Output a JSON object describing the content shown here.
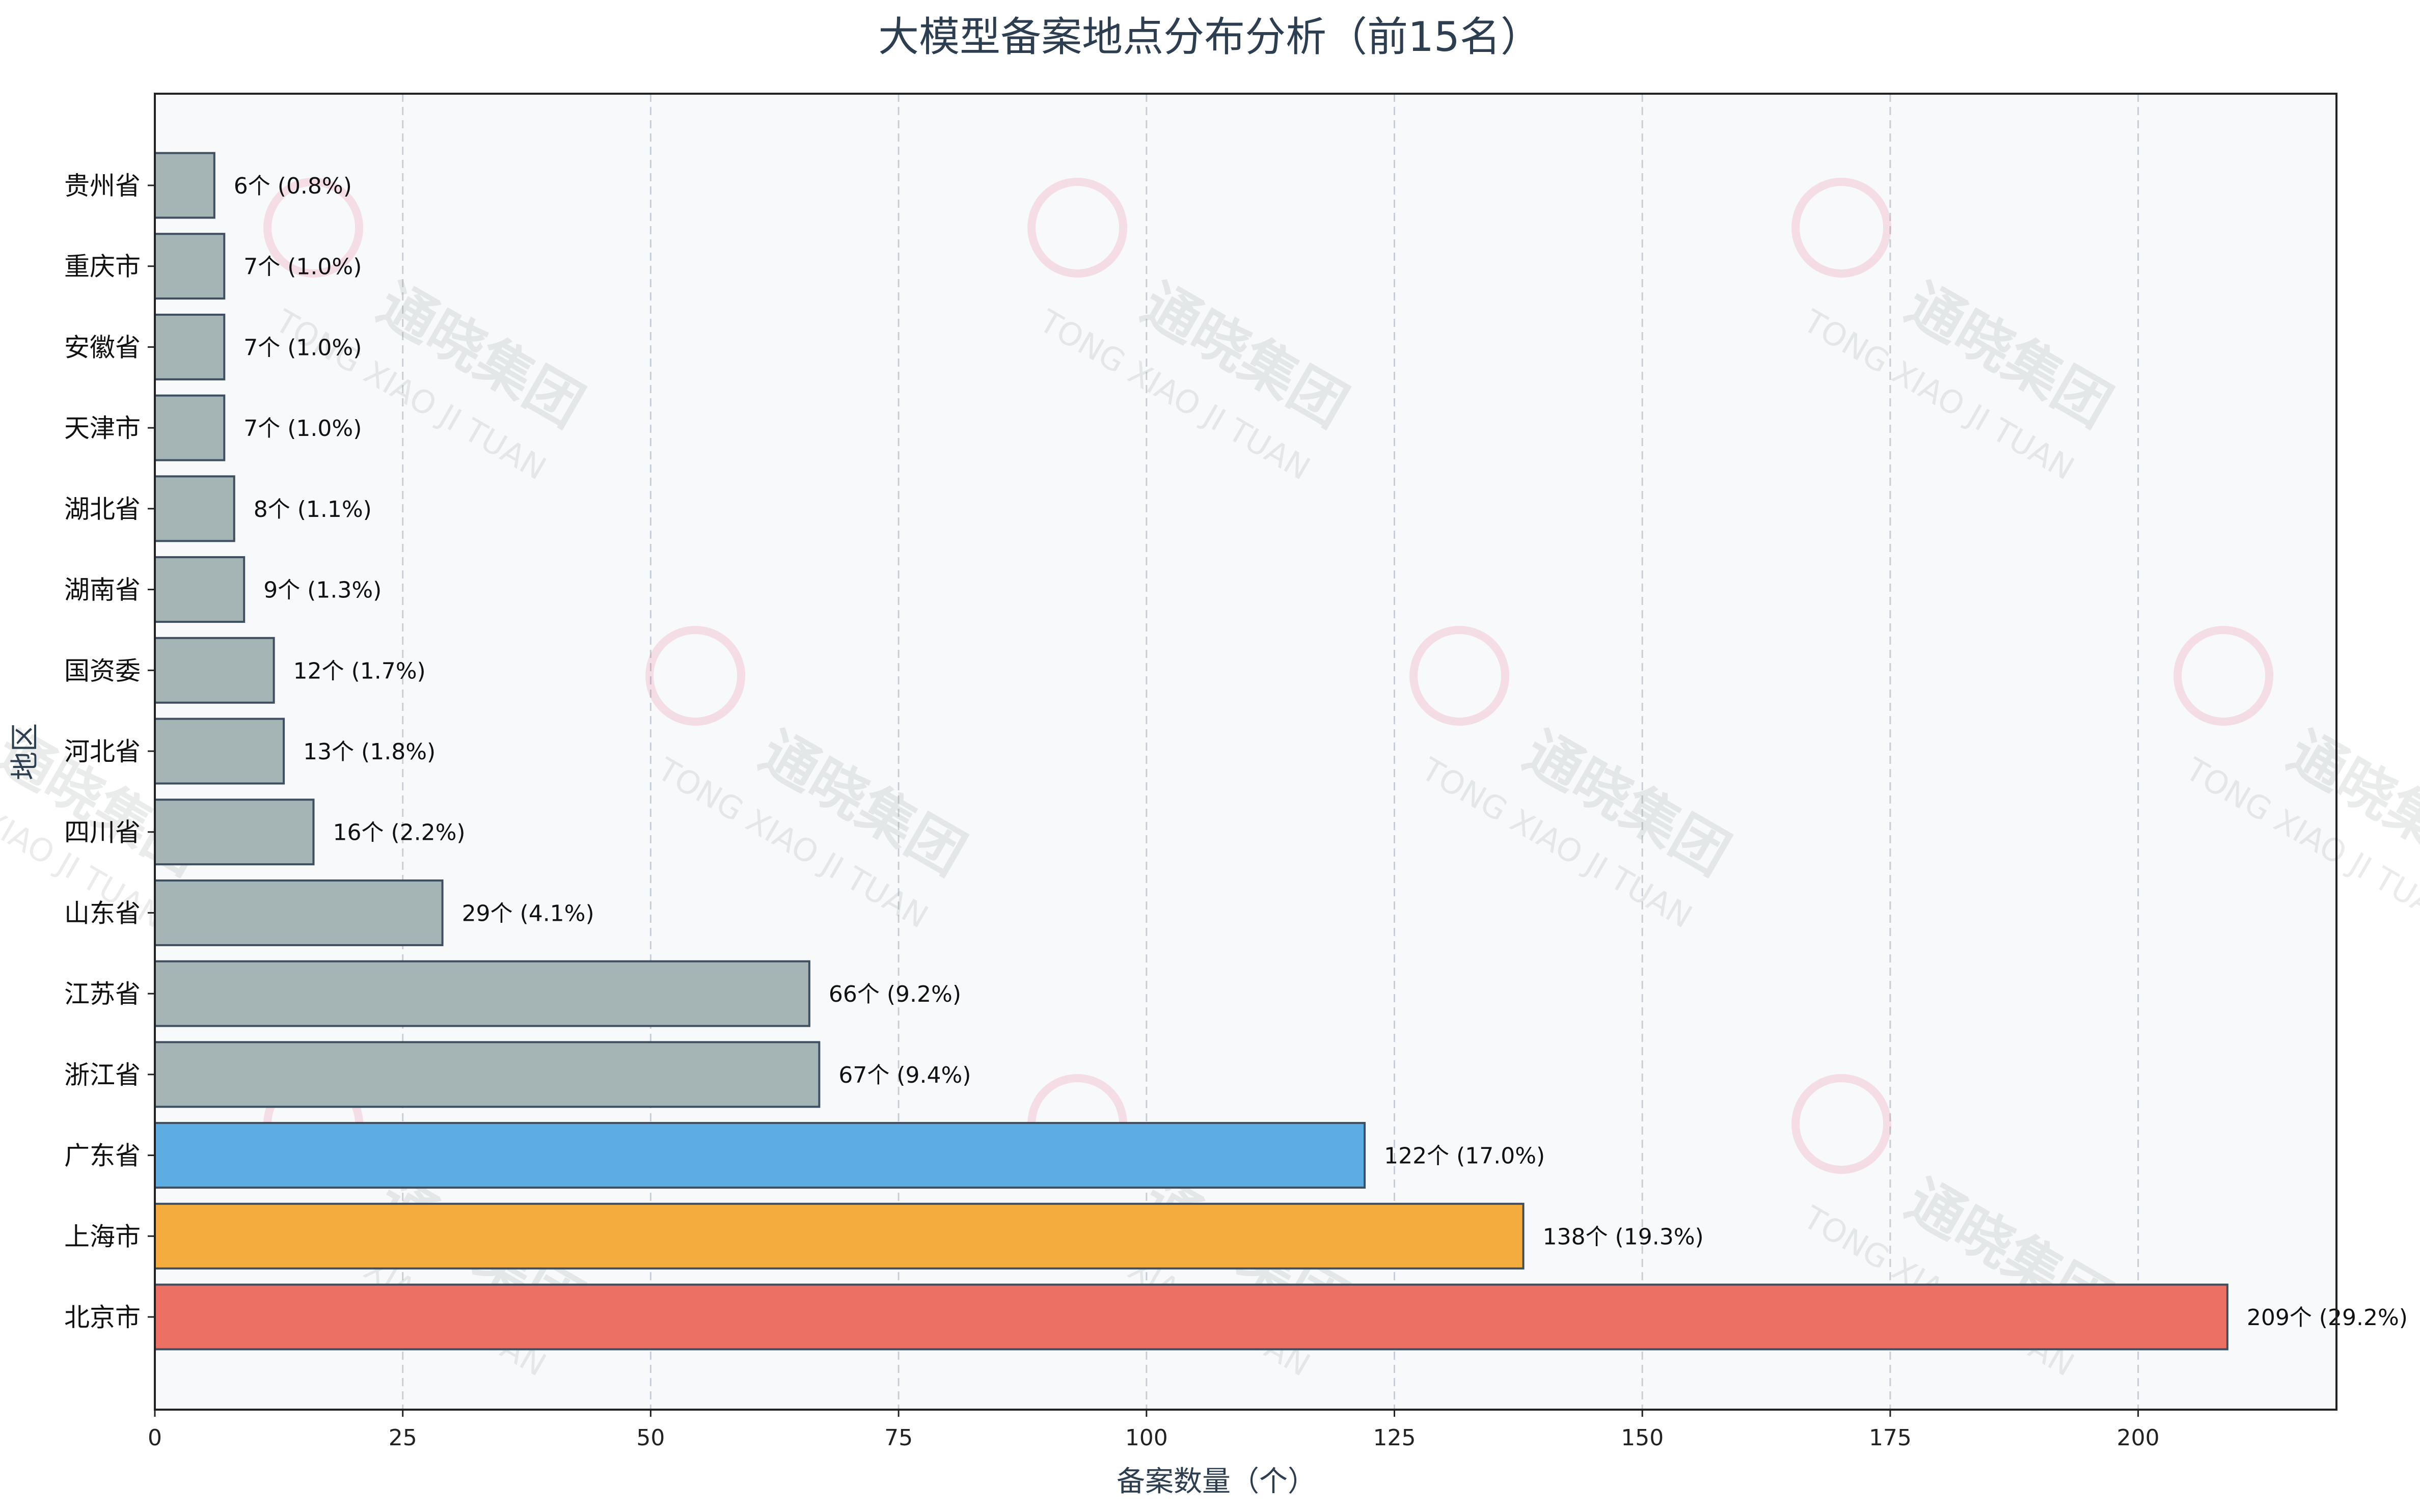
{
  "chart_data": {
    "type": "bar",
    "orientation": "horizontal",
    "title": "大模型备案地点分布分析（前15名）",
    "xlabel": "备案数量（个）",
    "ylabel": "地区",
    "xlim": [
      0,
      220
    ],
    "xticks": [
      0,
      25,
      50,
      75,
      100,
      125,
      150,
      175,
      200
    ],
    "grid": "vertical-dashed",
    "categories": [
      "贵州省",
      "重庆市",
      "安徽省",
      "天津市",
      "湖北省",
      "湖南省",
      "国资委",
      "河北省",
      "四川省",
      "山东省",
      "江苏省",
      "浙江省",
      "广东省",
      "上海市",
      "北京市"
    ],
    "values": [
      6,
      7,
      7,
      7,
      8,
      9,
      12,
      13,
      16,
      29,
      66,
      67,
      122,
      138,
      209
    ],
    "data_labels": [
      "6个 (0.8%)",
      "7个 (1.0%)",
      "7个 (1.0%)",
      "7个 (1.0%)",
      "8个 (1.1%)",
      "9个 (1.3%)",
      "12个 (1.7%)",
      "13个 (1.8%)",
      "16个 (2.2%)",
      "29个 (4.1%)",
      "66个 (9.2%)",
      "67个 (9.4%)",
      "122个 (17.0%)",
      "138个 (19.3%)",
      "209个 (29.2%)"
    ],
    "colors": [
      "#a5b4b5",
      "#a5b4b5",
      "#a5b4b5",
      "#a5b4b5",
      "#a5b4b5",
      "#a5b4b5",
      "#a5b4b5",
      "#a5b4b5",
      "#a5b4b5",
      "#a5b4b5",
      "#a5b4b5",
      "#a5b4b5",
      "#5dade2",
      "#f4ad3d",
      "#ec7063"
    ],
    "bar_edge_color": "#3d4f60",
    "plot_background": "#f7f9fb"
  },
  "watermark": {
    "text_cn": "通晓集团",
    "text_en": "TONG XIAO JI TUAN"
  }
}
